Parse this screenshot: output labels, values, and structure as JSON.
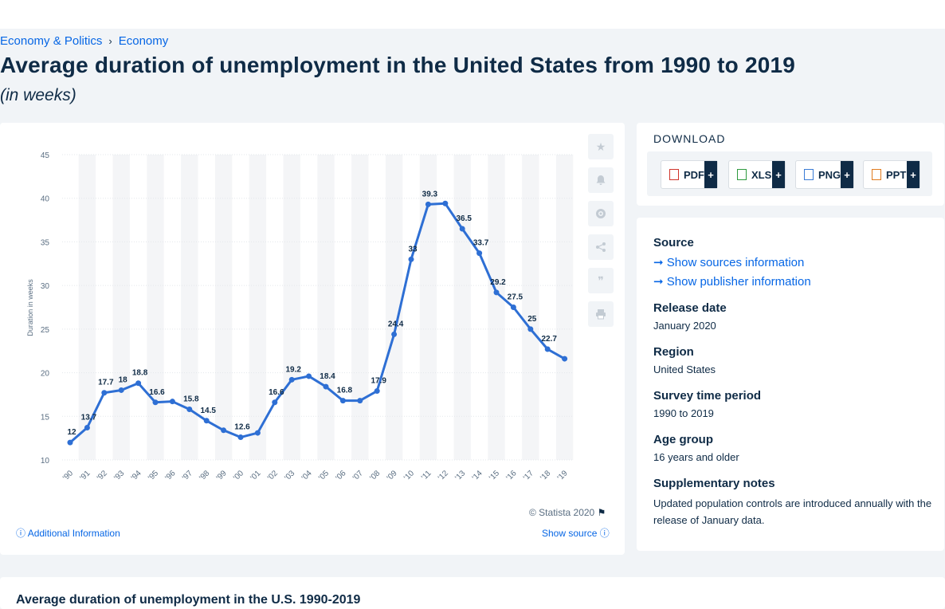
{
  "breadcrumb": {
    "items": [
      "Economy & Politics",
      "Economy"
    ]
  },
  "page": {
    "title": "Average duration of unemployment in the United States from 1990 to 2019",
    "subtitle": "(in weeks)"
  },
  "chart_data": {
    "type": "line",
    "categories": [
      "'90",
      "'91",
      "'92",
      "'93",
      "'94",
      "'95",
      "'96",
      "'97",
      "'98",
      "'99",
      "'00",
      "'01",
      "'02",
      "'03",
      "'04",
      "'05",
      "'06",
      "'07",
      "'08",
      "'09",
      "'10",
      "'11",
      "'12",
      "'13",
      "'14",
      "'15",
      "'16",
      "'17",
      "'18",
      "'19"
    ],
    "values": [
      12,
      13.7,
      17.7,
      18,
      18.8,
      16.6,
      16.7,
      15.8,
      14.5,
      13.4,
      12.6,
      13.1,
      16.6,
      19.2,
      19.6,
      18.4,
      16.8,
      16.8,
      17.9,
      24.4,
      33,
      39.3,
      39.4,
      36.5,
      33.7,
      29.2,
      27.5,
      25,
      22.7,
      21.6
    ],
    "data_labels": [
      "12",
      "13.7",
      "17.7",
      "18",
      "18.8",
      "16.6",
      "",
      "15.8",
      "14.5",
      "",
      "12.6",
      "",
      "16.6",
      "19.2",
      "",
      "18.4",
      "16.8",
      "",
      "17.9",
      "24.4",
      "33",
      "39.3",
      "",
      "36.5",
      "33.7",
      "29.2",
      "27.5",
      "25",
      "22.7",
      ""
    ],
    "yticks": [
      "45",
      "40",
      "35",
      "30",
      "25",
      "20",
      "15",
      "10"
    ],
    "ylim": [
      10,
      45
    ],
    "ylabel": "Duration in weeks",
    "line_color": "#2e6fd4",
    "grid": true
  },
  "chart_footer": {
    "copyright": "© Statista 2020",
    "additional": "Additional Information",
    "show_source": "Show source"
  },
  "download": {
    "title": "DOWNLOAD",
    "buttons": [
      "PDF",
      "XLS",
      "PNG",
      "PPT"
    ],
    "plus": "+"
  },
  "info": {
    "source_label": "Source",
    "show_sources": "Show sources information",
    "show_publisher": "Show publisher information",
    "release_label": "Release date",
    "release_value": "January 2020",
    "region_label": "Region",
    "region_value": "United States",
    "survey_label": "Survey time period",
    "survey_value": "1990 to 2019",
    "age_label": "Age group",
    "age_value": "16 years and older",
    "notes_label": "Supplementary notes",
    "notes_value": "Updated population controls are introduced annually with the release of January data."
  },
  "bottom": {
    "title": "Average duration of unemployment in the U.S. 1990-2019"
  },
  "tools": [
    "star-icon",
    "bell-icon",
    "gear-icon",
    "share-icon",
    "quote-icon",
    "print-icon"
  ]
}
